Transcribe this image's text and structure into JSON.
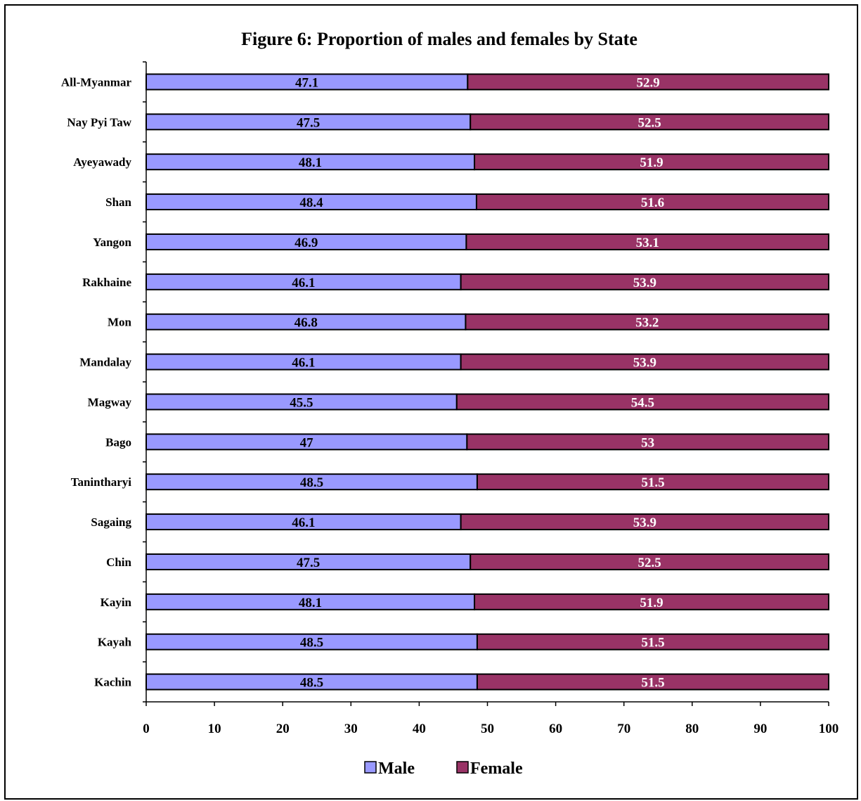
{
  "chart_data": {
    "type": "bar",
    "orientation": "horizontal",
    "stacked": true,
    "title": "Figure 6: Proportion of males and females by State",
    "xlabel": "",
    "ylabel": "",
    "xlim": [
      0,
      100
    ],
    "x_ticks": [
      0,
      10,
      20,
      30,
      40,
      50,
      60,
      70,
      80,
      90,
      100
    ],
    "categories": [
      "All-Myanmar",
      "Nay Pyi Taw",
      "Ayeyawady",
      "Shan",
      "Yangon",
      "Rakhaine",
      "Mon",
      "Mandalay",
      "Magway",
      "Bago",
      "Tanintharyi",
      "Sagaing",
      "Chin",
      "Kayin",
      "Kayah",
      "Kachin"
    ],
    "series": [
      {
        "name": "Male",
        "color": "#9999ff",
        "label_color": "#000000",
        "values": [
          47.1,
          47.5,
          48.1,
          48.4,
          46.9,
          46.1,
          46.8,
          46.1,
          45.5,
          47,
          48.5,
          46.1,
          47.5,
          48.1,
          48.5,
          48.5
        ]
      },
      {
        "name": "Female",
        "color": "#993366",
        "label_color": "#ffffff",
        "values": [
          52.9,
          52.5,
          51.9,
          51.6,
          53.1,
          53.9,
          53.2,
          53.9,
          54.5,
          53,
          51.5,
          53.9,
          52.5,
          51.9,
          51.5,
          51.5
        ]
      }
    ],
    "grid": false,
    "legend_position": "bottom",
    "data_labels": true
  }
}
